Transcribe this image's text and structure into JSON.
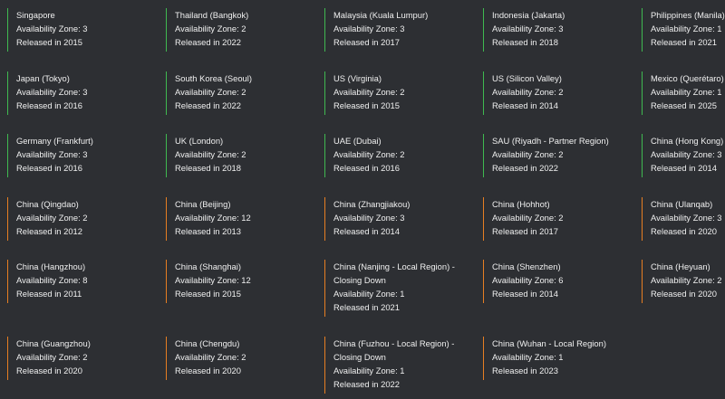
{
  "colors": {
    "background": "#2d2f33",
    "text": "#f0f0f0",
    "accent_green": "#3fb950",
    "accent_orange": "#e67e22"
  },
  "regions": [
    {
      "name": "Singapore",
      "az": "Availability Zone: 3",
      "released": "Released in 2015",
      "accent": "green"
    },
    {
      "name": "Thailand (Bangkok)",
      "az": "Availability Zone: 2",
      "released": "Released in 2022",
      "accent": "green"
    },
    {
      "name": "Malaysia (Kuala Lumpur)",
      "az": "Availability Zone: 3",
      "released": "Released in 2017",
      "accent": "green"
    },
    {
      "name": "Indonesia (Jakarta)",
      "az": "Availability Zone: 3",
      "released": "Released in 2018",
      "accent": "green"
    },
    {
      "name": "Philippines (Manila)",
      "az": "Availability Zone: 1",
      "released": "Released in 2021",
      "accent": "green"
    },
    {
      "name": "Japan (Tokyo)",
      "az": "Availability Zone: 3",
      "released": "Released in 2016",
      "accent": "green"
    },
    {
      "name": "South Korea (Seoul)",
      "az": "Availability Zone: 2",
      "released": "Released in 2022",
      "accent": "green"
    },
    {
      "name": "US (Virginia)",
      "az": "Availability Zone: 2",
      "released": "Released in 2015",
      "accent": "green"
    },
    {
      "name": "US (Silicon Valley)",
      "az": "Availability Zone: 2",
      "released": "Released in 2014",
      "accent": "green"
    },
    {
      "name": "Mexico (Querétaro)",
      "az": "Availability Zone: 1",
      "released": "Released in 2025",
      "accent": "green"
    },
    {
      "name": "Germany (Frankfurt)",
      "az": "Availability Zone: 3",
      "released": "Released in 2016",
      "accent": "green"
    },
    {
      "name": "UK (London)",
      "az": "Availability Zone: 2",
      "released": "Released in 2018",
      "accent": "green"
    },
    {
      "name": "UAE (Dubai)",
      "az": "Availability Zone: 2",
      "released": "Released in 2016",
      "accent": "green"
    },
    {
      "name": "SAU (Riyadh - Partner Region)",
      "az": "Availability Zone: 2",
      "released": "Released in 2022",
      "accent": "green"
    },
    {
      "name": "China (Hong Kong)",
      "az": "Availability Zone: 3",
      "released": "Released in 2014",
      "accent": "green"
    },
    {
      "name": "China (Qingdao)",
      "az": "Availability Zone: 2",
      "released": "Released in 2012",
      "accent": "orange"
    },
    {
      "name": "China (Beijing)",
      "az": "Availability Zone: 12",
      "released": "Released in 2013",
      "accent": "orange"
    },
    {
      "name": "China (Zhangjiakou)",
      "az": "Availability Zone: 3",
      "released": "Released in 2014",
      "accent": "orange"
    },
    {
      "name": "China (Hohhot)",
      "az": "Availability Zone: 2",
      "released": "Released in 2017",
      "accent": "orange"
    },
    {
      "name": "China (Ulanqab)",
      "az": "Availability Zone: 3",
      "released": "Released in 2020",
      "accent": "orange"
    },
    {
      "name": "China (Hangzhou)",
      "az": "Availability Zone: 8",
      "released": "Released in 2011",
      "accent": "orange"
    },
    {
      "name": "China (Shanghai)",
      "az": "Availability Zone: 12",
      "released": "Released in 2015",
      "accent": "orange"
    },
    {
      "name": "China (Nanjing - Local Region) - Closing Down",
      "az": "Availability Zone: 1",
      "released": "Released in 2021",
      "accent": "orange",
      "wrap": true
    },
    {
      "name": "China (Shenzhen)",
      "az": "Availability Zone: 6",
      "released": "Released in 2014",
      "accent": "orange"
    },
    {
      "name": "China (Heyuan)",
      "az": "Availability Zone: 2",
      "released": "Released in 2020",
      "accent": "orange"
    },
    {
      "name": "China (Guangzhou)",
      "az": "Availability Zone: 2",
      "released": "Released in 2020",
      "accent": "orange"
    },
    {
      "name": "China (Chengdu)",
      "az": "Availability Zone: 2",
      "released": "Released in 2020",
      "accent": "orange"
    },
    {
      "name": "China (Fuzhou - Local Region) - Closing Down",
      "az": "Availability Zone: 1",
      "released": "Released in 2022",
      "accent": "orange",
      "wrap": true
    },
    {
      "name": "China (Wuhan - Local Region)",
      "az": "Availability Zone: 1",
      "released": "Released in 2023",
      "accent": "orange"
    }
  ]
}
